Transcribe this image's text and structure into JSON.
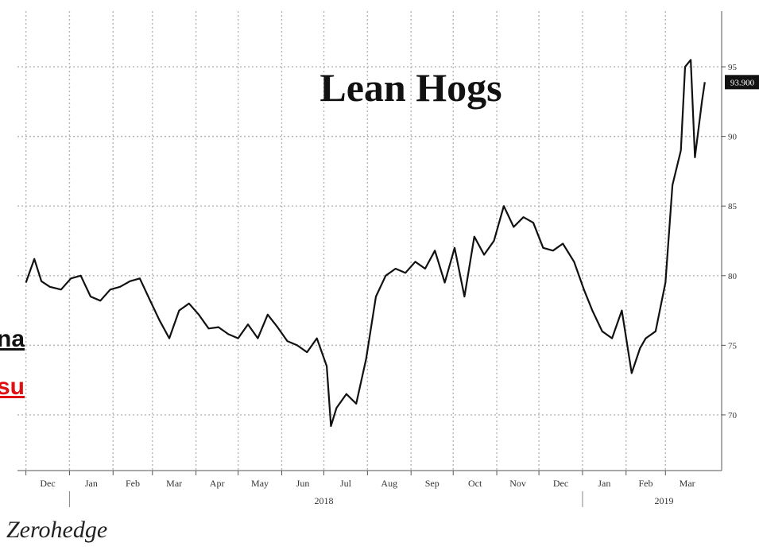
{
  "chart_data": {
    "type": "line",
    "title": "Lean Hogs",
    "xlabel": "",
    "ylabel": "",
    "ylim": [
      66,
      99
    ],
    "y_ticks": [
      "70",
      "75",
      "80",
      "85",
      "90",
      "95"
    ],
    "last_value_label": "93.900",
    "grid": true,
    "legend": "none",
    "x_tick_labels": [
      "Dec",
      "Jan",
      "Feb",
      "Mar",
      "Apr",
      "May",
      "Jun",
      "Jul",
      "Aug",
      "Sep",
      "Oct",
      "Nov",
      "Dec",
      "Jan",
      "Feb",
      "Mar"
    ],
    "year_labels": [
      "2018",
      "2019"
    ],
    "series": [
      {
        "x": [
          "2017-12-01",
          "2017-12-07",
          "2017-12-12",
          "2017-12-18",
          "2017-12-26",
          "2018-01-02",
          "2018-01-09",
          "2018-01-16",
          "2018-01-23",
          "2018-01-30",
          "2018-02-06",
          "2018-02-13",
          "2018-02-20",
          "2018-02-27",
          "2018-03-06",
          "2018-03-13",
          "2018-03-20",
          "2018-03-27",
          "2018-04-03",
          "2018-04-10",
          "2018-04-17",
          "2018-04-24",
          "2018-05-01",
          "2018-05-08",
          "2018-05-15",
          "2018-05-22",
          "2018-05-29",
          "2018-06-05",
          "2018-06-12",
          "2018-06-19",
          "2018-06-26",
          "2018-07-03",
          "2018-07-06",
          "2018-07-10",
          "2018-07-17",
          "2018-07-24",
          "2018-07-31",
          "2018-08-07",
          "2018-08-14",
          "2018-08-21",
          "2018-08-28",
          "2018-09-04",
          "2018-09-11",
          "2018-09-18",
          "2018-09-25",
          "2018-10-02",
          "2018-10-09",
          "2018-10-16",
          "2018-10-23",
          "2018-10-30",
          "2018-11-06",
          "2018-11-13",
          "2018-11-20",
          "2018-11-27",
          "2018-12-04",
          "2018-12-11",
          "2018-12-18",
          "2018-12-26",
          "2019-01-02",
          "2019-01-08",
          "2019-01-15",
          "2019-01-22",
          "2019-01-29",
          "2019-02-05",
          "2019-02-11",
          "2019-02-15",
          "2019-02-22",
          "2019-03-01",
          "2019-03-06",
          "2019-03-12",
          "2019-03-15",
          "2019-03-19",
          "2019-03-22",
          "2019-03-27",
          "2019-03-29"
        ],
        "values": [
          79.5,
          81.2,
          79.6,
          79.2,
          79.0,
          79.8,
          80.0,
          78.5,
          78.2,
          79.0,
          79.2,
          79.6,
          79.8,
          78.3,
          76.8,
          75.5,
          77.5,
          78.0,
          77.2,
          76.2,
          76.3,
          75.8,
          75.5,
          76.5,
          75.5,
          77.2,
          76.3,
          75.3,
          75.0,
          74.5,
          75.5,
          73.5,
          69.2,
          70.5,
          71.5,
          70.8,
          74.0,
          78.5,
          80.0,
          80.5,
          80.2,
          81.0,
          80.5,
          81.8,
          79.5,
          82.0,
          78.5,
          82.8,
          81.5,
          82.5,
          85.0,
          83.5,
          84.2,
          83.8,
          82.0,
          81.8,
          82.3,
          81.0,
          79.0,
          77.5,
          76.0,
          75.5,
          77.5,
          73.0,
          74.8,
          75.5,
          76.0,
          79.5,
          86.5,
          89.0,
          95.0,
          95.5,
          88.5,
          92.5,
          93.9
        ]
      }
    ]
  },
  "fragments": {
    "line1": "na",
    "line2": "su"
  },
  "source_label": "Zerohedge"
}
